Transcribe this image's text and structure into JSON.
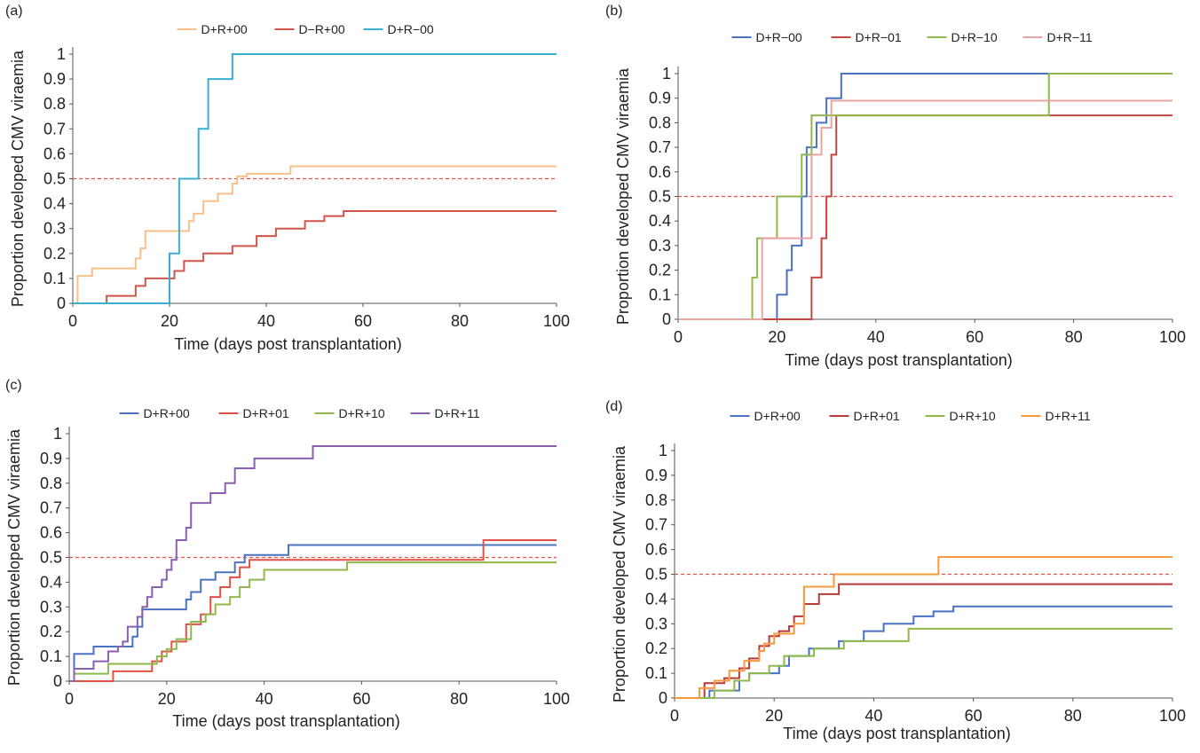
{
  "chart_data": [
    {
      "type": "line",
      "panel_label": "(a)",
      "xlabel": "Time (days post transplantation)",
      "ylabel": "Proportion developed CMV viraemia",
      "xlim": [
        0,
        100
      ],
      "ylim": [
        0,
        1
      ],
      "xticks": [
        0,
        20,
        40,
        60,
        80,
        100
      ],
      "yticks": [
        0,
        0.1,
        0.2,
        0.3,
        0.4,
        0.5,
        0.6,
        0.7,
        0.8,
        0.9,
        1
      ],
      "legend_position": "top-center",
      "grid": false,
      "reference_line": {
        "y": 0.5,
        "style": "dashed",
        "color": "#e8503f"
      },
      "series": [
        {
          "name": "D+R+00",
          "color": "#f7c08a",
          "step": true,
          "x": [
            0,
            1,
            4,
            10,
            13,
            14,
            15,
            19,
            23,
            24,
            25,
            27,
            30,
            33,
            34,
            36,
            45,
            100
          ],
          "y": [
            0,
            0.11,
            0.14,
            0.14,
            0.18,
            0.22,
            0.29,
            0.29,
            0.29,
            0.33,
            0.36,
            0.41,
            0.44,
            0.48,
            0.51,
            0.52,
            0.55,
            0.55
          ]
        },
        {
          "name": "D−R+00",
          "color": "#d1554a",
          "step": true,
          "x": [
            0,
            7,
            13,
            15,
            19,
            21,
            23,
            27,
            33,
            38,
            42,
            48,
            52,
            56,
            100
          ],
          "y": [
            0,
            0.03,
            0.07,
            0.1,
            0.1,
            0.13,
            0.17,
            0.2,
            0.23,
            0.27,
            0.3,
            0.33,
            0.35,
            0.37,
            0.37
          ]
        },
        {
          "name": "D+R−00",
          "color": "#39b0cf",
          "step": true,
          "x": [
            0,
            20,
            22,
            24,
            26,
            28,
            33,
            100
          ],
          "y": [
            0,
            0.2,
            0.5,
            0.5,
            0.7,
            0.9,
            1,
            1
          ]
        }
      ]
    },
    {
      "type": "line",
      "panel_label": "(b)",
      "xlabel": "Time (days post transplantation)",
      "ylabel": "Proportion developed CMV viraemia",
      "xlim": [
        0,
        100
      ],
      "ylim": [
        0,
        1
      ],
      "xticks": [
        0,
        20,
        40,
        60,
        80,
        100
      ],
      "yticks": [
        0,
        0.1,
        0.2,
        0.3,
        0.4,
        0.5,
        0.6,
        0.7,
        0.8,
        0.9,
        1
      ],
      "legend_position": "top-center",
      "grid": false,
      "reference_line": {
        "y": 0.5,
        "style": "dashed",
        "color": "#e8503f"
      },
      "series": [
        {
          "name": "D+R−00",
          "color": "#4a72c2",
          "step": true,
          "x": [
            0,
            20,
            22,
            23,
            25,
            26,
            28,
            30,
            33,
            100
          ],
          "y": [
            0,
            0.1,
            0.2,
            0.3,
            0.5,
            0.7,
            0.8,
            0.9,
            1,
            1
          ]
        },
        {
          "name": "D+R−01",
          "color": "#c8453d",
          "step": true,
          "x": [
            0,
            27,
            29,
            30,
            31,
            32,
            33,
            100
          ],
          "y": [
            0,
            0.17,
            0.33,
            0.5,
            0.67,
            0.83,
            0.83,
            0.83
          ]
        },
        {
          "name": "D+R−10",
          "color": "#8fb84a",
          "step": true,
          "x": [
            0,
            15,
            16,
            20,
            22,
            25,
            27,
            75,
            100
          ],
          "y": [
            0,
            0.17,
            0.33,
            0.5,
            0.5,
            0.67,
            0.83,
            1,
            1
          ]
        },
        {
          "name": "D+R−11",
          "color": "#e8a3a3",
          "step": true,
          "x": [
            0,
            17,
            22,
            27,
            29,
            31,
            100
          ],
          "y": [
            0,
            0.33,
            0.33,
            0.67,
            0.78,
            0.89,
            0.89
          ]
        }
      ]
    },
    {
      "type": "line",
      "panel_label": "(c)",
      "xlabel": "Time (days post transplantation)",
      "ylabel": "Proportion developed CMV viraemia",
      "xlim": [
        0,
        100
      ],
      "ylim": [
        0,
        1
      ],
      "xticks": [
        0,
        20,
        40,
        60,
        80,
        100
      ],
      "yticks": [
        0,
        0.1,
        0.2,
        0.3,
        0.4,
        0.5,
        0.6,
        0.7,
        0.8,
        0.9,
        1
      ],
      "legend_position": "top-center",
      "grid": false,
      "reference_line": {
        "y": 0.5,
        "style": "dashed",
        "color": "#e8503f"
      },
      "series": [
        {
          "name": "D+R+00",
          "color": "#4a72c2",
          "step": true,
          "x": [
            0,
            1,
            5,
            10,
            13,
            14,
            15,
            19,
            24,
            25,
            27,
            30,
            34,
            36,
            45,
            100
          ],
          "y": [
            0,
            0.11,
            0.14,
            0.14,
            0.18,
            0.22,
            0.29,
            0.29,
            0.33,
            0.36,
            0.41,
            0.44,
            0.48,
            0.51,
            0.55,
            0.55
          ]
        },
        {
          "name": "D+R+01",
          "color": "#e05045",
          "step": true,
          "x": [
            0,
            9,
            17,
            19,
            21,
            24,
            27,
            29,
            31,
            33,
            35,
            37,
            85,
            100
          ],
          "y": [
            0,
            0.04,
            0.08,
            0.12,
            0.16,
            0.23,
            0.27,
            0.34,
            0.38,
            0.42,
            0.46,
            0.49,
            0.57,
            0.57
          ]
        },
        {
          "name": "D+R+10",
          "color": "#8fb84a",
          "step": true,
          "x": [
            0,
            1,
            8,
            18,
            20,
            22,
            25,
            28,
            30,
            33,
            35,
            37,
            40,
            57,
            100
          ],
          "y": [
            0,
            0.03,
            0.07,
            0.1,
            0.13,
            0.17,
            0.24,
            0.27,
            0.31,
            0.34,
            0.38,
            0.41,
            0.45,
            0.48,
            0.48
          ]
        },
        {
          "name": "D+R+11",
          "color": "#8b5fb0",
          "step": true,
          "x": [
            0,
            1,
            5,
            8,
            10,
            11,
            12,
            14,
            15,
            16,
            17,
            19,
            20,
            21,
            22,
            24,
            25,
            28,
            29,
            32,
            34,
            36,
            38,
            43,
            50,
            100
          ],
          "y": [
            0,
            0.05,
            0.08,
            0.12,
            0.14,
            0.16,
            0.22,
            0.26,
            0.3,
            0.34,
            0.38,
            0.41,
            0.45,
            0.49,
            0.57,
            0.62,
            0.72,
            0.72,
            0.76,
            0.8,
            0.86,
            0.86,
            0.9,
            0.9,
            0.95,
            0.95
          ]
        }
      ]
    },
    {
      "type": "line",
      "panel_label": "(d)",
      "xlabel": "Time (days post transplantation)",
      "ylabel": "Proportion developed CMV viraemia",
      "xlim": [
        0,
        100
      ],
      "ylim": [
        0,
        1
      ],
      "xticks": [
        0,
        20,
        40,
        60,
        80,
        100
      ],
      "yticks": [
        0,
        0.1,
        0.2,
        0.3,
        0.4,
        0.5,
        0.6,
        0.7,
        0.8,
        0.9,
        1
      ],
      "legend_position": "top-center",
      "grid": false,
      "reference_line": {
        "y": 0.5,
        "style": "dashed",
        "color": "#e8503f"
      },
      "series": [
        {
          "name": "D+R+00",
          "color": "#4a72c2",
          "step": true,
          "x": [
            0,
            7,
            13,
            15,
            19,
            21,
            23,
            27,
            33,
            38,
            42,
            48,
            52,
            56,
            100
          ],
          "y": [
            0,
            0.03,
            0.07,
            0.1,
            0.1,
            0.13,
            0.17,
            0.2,
            0.23,
            0.27,
            0.3,
            0.33,
            0.35,
            0.37,
            0.37
          ]
        },
        {
          "name": "D+R+01",
          "color": "#b83a3a",
          "step": true,
          "x": [
            0,
            6,
            10,
            13,
            15,
            17,
            19,
            21,
            23,
            24,
            26,
            29,
            33,
            100
          ],
          "y": [
            0,
            0.06,
            0.08,
            0.12,
            0.16,
            0.21,
            0.25,
            0.27,
            0.29,
            0.33,
            0.38,
            0.42,
            0.46,
            0.46
          ]
        },
        {
          "name": "D+R+10",
          "color": "#8fb84a",
          "step": true,
          "x": [
            0,
            8,
            12,
            15,
            19,
            22,
            28,
            34,
            47,
            100
          ],
          "y": [
            0,
            0.03,
            0.07,
            0.1,
            0.13,
            0.17,
            0.2,
            0.23,
            0.28,
            0.28
          ]
        },
        {
          "name": "D+R+11",
          "color": "#f79a3e",
          "step": true,
          "x": [
            0,
            5,
            8,
            11,
            14,
            17,
            18,
            20,
            24,
            26,
            32,
            53,
            100
          ],
          "y": [
            0,
            0.04,
            0.07,
            0.11,
            0.15,
            0.19,
            0.22,
            0.26,
            0.3,
            0.45,
            0.5,
            0.57,
            0.57
          ]
        }
      ]
    }
  ]
}
